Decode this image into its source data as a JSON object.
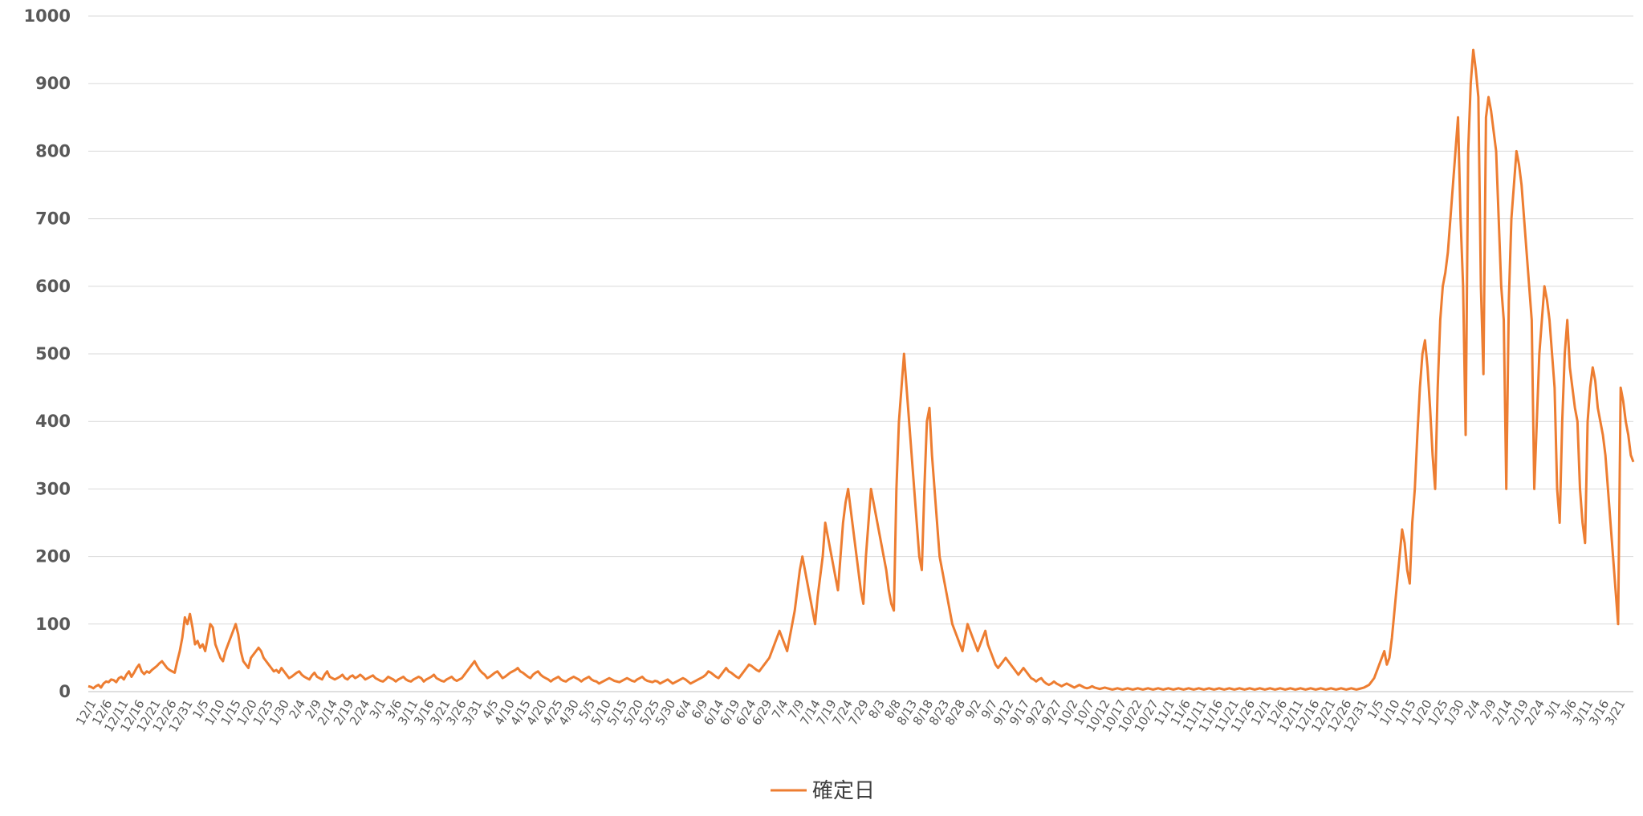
{
  "chart_data": {
    "type": "line",
    "title": "",
    "xlabel": "",
    "ylabel": "",
    "ylim": [
      0,
      1000
    ],
    "y_ticks": [
      "0",
      "100",
      "200",
      "300",
      "400",
      "500",
      "600",
      "700",
      "800",
      "900",
      "1000"
    ],
    "grid": true,
    "legend_position": "bottom",
    "x_tick_labels": [
      "12/1",
      "12/6",
      "12/11",
      "12/16",
      "12/21",
      "12/26",
      "12/31",
      "1/5",
      "1/10",
      "1/15",
      "1/20",
      "1/25",
      "1/30",
      "2/4",
      "2/9",
      "2/14",
      "2/19",
      "2/24",
      "3/1",
      "3/6",
      "3/11",
      "3/16",
      "3/21",
      "3/26",
      "3/31",
      "4/5",
      "4/10",
      "4/15",
      "4/20",
      "4/25",
      "4/30",
      "5/5",
      "5/10",
      "5/15",
      "5/20",
      "5/25",
      "5/30",
      "6/4",
      "6/9",
      "6/14",
      "6/19",
      "6/24",
      "6/29",
      "7/4",
      "7/9",
      "7/14",
      "7/19",
      "7/24",
      "7/29",
      "8/3",
      "8/8",
      "8/13",
      "8/18",
      "8/23",
      "8/28",
      "9/2",
      "9/7",
      "9/12",
      "9/17",
      "9/22",
      "9/27",
      "10/2",
      "10/7",
      "10/12",
      "10/17",
      "10/22",
      "10/27",
      "11/1",
      "11/6",
      "11/11",
      "11/16",
      "11/21",
      "11/26",
      "12/1",
      "12/6",
      "12/11",
      "12/16",
      "12/21",
      "12/26",
      "12/31",
      "1/5",
      "1/10",
      "1/15",
      "1/20",
      "1/25",
      "1/30",
      "2/4",
      "2/9",
      "2/14",
      "2/19",
      "2/24",
      "3/1",
      "3/6",
      "3/11",
      "3/16",
      "3/21"
    ],
    "series": [
      {
        "name": "確定日",
        "color": "#ed7d31",
        "values": [
          8,
          7,
          5,
          8,
          10,
          6,
          12,
          15,
          14,
          18,
          17,
          14,
          20,
          22,
          18,
          25,
          30,
          22,
          28,
          35,
          40,
          30,
          26,
          30,
          28,
          32,
          35,
          38,
          42,
          45,
          40,
          35,
          32,
          30,
          28,
          45,
          60,
          80,
          110,
          100,
          115,
          95,
          70,
          75,
          65,
          70,
          60,
          80,
          100,
          95,
          70,
          60,
          50,
          45,
          60,
          70,
          80,
          90,
          100,
          85,
          60,
          45,
          40,
          35,
          50,
          55,
          60,
          65,
          60,
          50,
          45,
          40,
          35,
          30,
          32,
          28,
          35,
          30,
          25,
          20,
          22,
          25,
          28,
          30,
          25,
          22,
          20,
          18,
          24,
          28,
          22,
          20,
          18,
          25,
          30,
          22,
          20,
          18,
          20,
          22,
          25,
          20,
          18,
          22,
          24,
          20,
          22,
          25,
          22,
          18,
          20,
          22,
          24,
          20,
          18,
          16,
          15,
          18,
          22,
          20,
          18,
          15,
          18,
          20,
          22,
          18,
          16,
          15,
          18,
          20,
          22,
          20,
          15,
          18,
          20,
          22,
          25,
          20,
          18,
          16,
          15,
          18,
          20,
          22,
          18,
          16,
          18,
          20,
          25,
          30,
          35,
          40,
          45,
          38,
          32,
          28,
          25,
          20,
          22,
          25,
          28,
          30,
          25,
          20,
          22,
          25,
          28,
          30,
          32,
          35,
          30,
          28,
          25,
          22,
          20,
          25,
          28,
          30,
          25,
          22,
          20,
          18,
          15,
          18,
          20,
          22,
          18,
          16,
          15,
          18,
          20,
          22,
          20,
          18,
          15,
          18,
          20,
          22,
          18,
          16,
          15,
          12,
          14,
          16,
          18,
          20,
          18,
          16,
          15,
          14,
          16,
          18,
          20,
          18,
          16,
          15,
          18,
          20,
          22,
          18,
          16,
          15,
          14,
          16,
          15,
          12,
          14,
          16,
          18,
          15,
          12,
          14,
          16,
          18,
          20,
          18,
          15,
          12,
          14,
          16,
          18,
          20,
          22,
          25,
          30,
          28,
          25,
          22,
          20,
          25,
          30,
          35,
          30,
          28,
          25,
          22,
          20,
          25,
          30,
          35,
          40,
          38,
          35,
          32,
          30,
          35,
          40,
          45,
          50,
          60,
          70,
          80,
          90,
          80,
          70,
          60,
          80,
          100,
          120,
          150,
          180,
          200,
          180,
          160,
          140,
          120,
          100,
          140,
          170,
          200,
          250,
          230,
          210,
          190,
          170,
          150,
          200,
          250,
          280,
          300,
          270,
          240,
          210,
          180,
          150,
          130,
          200,
          250,
          300,
          280,
          260,
          240,
          220,
          200,
          180,
          150,
          130,
          120,
          300,
          400,
          450,
          500,
          450,
          400,
          350,
          300,
          250,
          200,
          180,
          300,
          400,
          420,
          350,
          300,
          250,
          200,
          180,
          160,
          140,
          120,
          100,
          90,
          80,
          70,
          60,
          80,
          100,
          90,
          80,
          70,
          60,
          70,
          80,
          90,
          70,
          60,
          50,
          40,
          35,
          40,
          45,
          50,
          45,
          40,
          35,
          30,
          25,
          30,
          35,
          30,
          25,
          20,
          18,
          15,
          18,
          20,
          15,
          12,
          10,
          12,
          15,
          12,
          10,
          8,
          10,
          12,
          10,
          8,
          6,
          8,
          10,
          8,
          6,
          5,
          6,
          8,
          6,
          5,
          4,
          5,
          6,
          5,
          4,
          3,
          4,
          5,
          4,
          3,
          4,
          5,
          4,
          3,
          4,
          5,
          4,
          3,
          4,
          5,
          4,
          3,
          4,
          5,
          4,
          3,
          4,
          5,
          4,
          3,
          4,
          5,
          4,
          3,
          4,
          5,
          4,
          3,
          4,
          5,
          4,
          3,
          4,
          5,
          4,
          3,
          4,
          5,
          4,
          3,
          4,
          5,
          4,
          3,
          4,
          5,
          4,
          3,
          4,
          5,
          4,
          3,
          4,
          5,
          4,
          3,
          4,
          5,
          4,
          3,
          4,
          5,
          4,
          3,
          4,
          5,
          4,
          3,
          4,
          5,
          4,
          3,
          4,
          5,
          4,
          3,
          4,
          5,
          4,
          3,
          4,
          5,
          4,
          3,
          4,
          5,
          4,
          3,
          4,
          5,
          4,
          3,
          4,
          5,
          6,
          8,
          10,
          15,
          20,
          30,
          40,
          50,
          60,
          40,
          50,
          80,
          120,
          160,
          200,
          240,
          220,
          180,
          160,
          250,
          300,
          380,
          450,
          500,
          520,
          480,
          420,
          350,
          300,
          450,
          550,
          600,
          620,
          650,
          700,
          750,
          800,
          850,
          700,
          600,
          380,
          800,
          900,
          950,
          920,
          880,
          600,
          470,
          850,
          880,
          860,
          830,
          800,
          700,
          600,
          550,
          300,
          580,
          700,
          750,
          800,
          780,
          750,
          700,
          650,
          600,
          550,
          300,
          400,
          500,
          550,
          600,
          580,
          550,
          500,
          450,
          300,
          250,
          400,
          500,
          550,
          480,
          450,
          420,
          400,
          300,
          250,
          220,
          400,
          450,
          480,
          460,
          420,
          400,
          380,
          350,
          300,
          250,
          200,
          150,
          100,
          450,
          430,
          400,
          380,
          350,
          340
        ]
      }
    ]
  }
}
